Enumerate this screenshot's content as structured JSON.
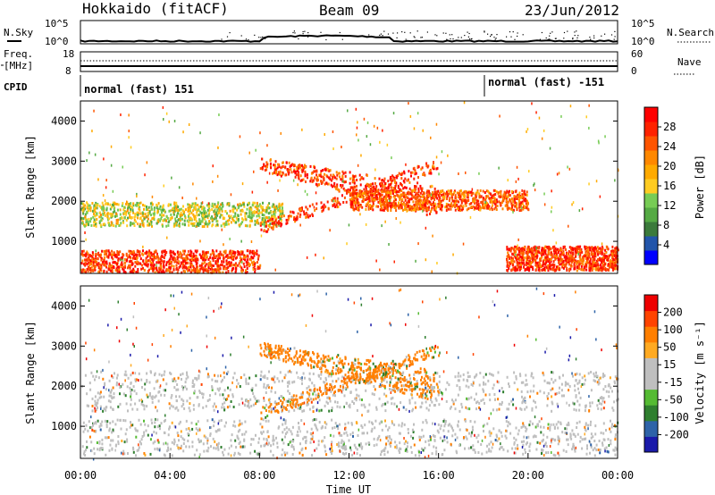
{
  "header": {
    "title_left": "Hokkaido (fitACF)",
    "title_center": "Beam 09",
    "title_right": "23/Jun/2012"
  },
  "strips": {
    "nsky_label": "N.Sky",
    "nsearch_label": "N.Search",
    "noise_ticks_left": [
      "10^5",
      "10^0"
    ],
    "noise_ticks_right": [
      "10^5",
      "10^0"
    ],
    "freq_label_1": "Freq.",
    "freq_label_2": "[MHz]",
    "freq_ticks_left": [
      "18",
      "8"
    ],
    "freq_ticks_right": [
      "60",
      "0"
    ],
    "nave_label": "Nave",
    "cpid_label": "CPID",
    "cpid_segments": [
      {
        "label": "normal (fast) 151",
        "start_hour": 0
      },
      {
        "label": "normal (fast) -151",
        "start_hour": 18
      }
    ]
  },
  "colors": {
    "power_scale": [
      "#0000ff",
      "#2255aa",
      "#3b7a3b",
      "#55aa44",
      "#77cc55",
      "#ffcc22",
      "#ffaa00",
      "#ff8800",
      "#ff5500",
      "#ff2200",
      "#ff0000"
    ],
    "velocity_scale": [
      "#1a1aaa",
      "#2e63a8",
      "#2f7f2f",
      "#55bb33",
      "#bfbfbf",
      "#bfbfbf",
      "#ffaa22",
      "#ff7f00",
      "#ff4400",
      "#ee0000"
    ]
  },
  "chart_data": [
    {
      "type": "heatmap",
      "name": "power",
      "ylabel": "Slant Range [km]",
      "yticks": [
        "1000",
        "2000",
        "3000",
        "4000"
      ],
      "xlim": [
        0,
        24
      ],
      "ylim": [
        200,
        4500
      ],
      "colorbar_label": "Power [dB]",
      "colorbar_ticks": [
        "4",
        "8",
        "12",
        "16",
        "20",
        "24",
        "28"
      ],
      "features": [
        {
          "band": "E-region near range",
          "hours": [
            0,
            8
          ],
          "range_km": [
            250,
            800
          ],
          "power_db": 26
        },
        {
          "band": "lower F band",
          "hours": [
            0,
            9
          ],
          "range_km": [
            1400,
            2000
          ],
          "power_db": 14
        },
        {
          "band": "rising trace",
          "hours": [
            8,
            16
          ],
          "range_km": [
            1200,
            3200
          ],
          "power_db": 26
        },
        {
          "band": "midnight-sun band",
          "hours": [
            12,
            20
          ],
          "range_km": [
            1800,
            2300
          ],
          "power_db": 24
        },
        {
          "band": "late near range",
          "hours": [
            19,
            24
          ],
          "range_km": [
            300,
            900
          ],
          "power_db": 26
        }
      ]
    },
    {
      "type": "heatmap",
      "name": "velocity",
      "xlabel": "Time UT",
      "ylabel": "Slant Range [km]",
      "xticks": [
        "00:00",
        "04:00",
        "08:00",
        "12:00",
        "16:00",
        "20:00",
        "00:00"
      ],
      "yticks": [
        "1000",
        "2000",
        "3000",
        "4000"
      ],
      "xlim": [
        0,
        24
      ],
      "ylim": [
        200,
        4500
      ],
      "colorbar_label": "Velocity [m s⁻¹]",
      "colorbar_ticks": [
        "200",
        "100",
        "50",
        "15",
        "-15",
        "-50",
        "-100",
        "-200"
      ],
      "features": [
        {
          "band": "near-range ground scatter",
          "hours": [
            0,
            24
          ],
          "range_km": [
            300,
            1200
          ],
          "velocity_ms": 0
        },
        {
          "band": "F-region band",
          "hours": [
            0,
            24
          ],
          "range_km": [
            1400,
            2400
          ],
          "velocity_ms": 0
        },
        {
          "band": "rising trace",
          "hours": [
            8,
            16
          ],
          "range_km": [
            1200,
            3200
          ],
          "velocity_ms": -40
        }
      ]
    }
  ]
}
